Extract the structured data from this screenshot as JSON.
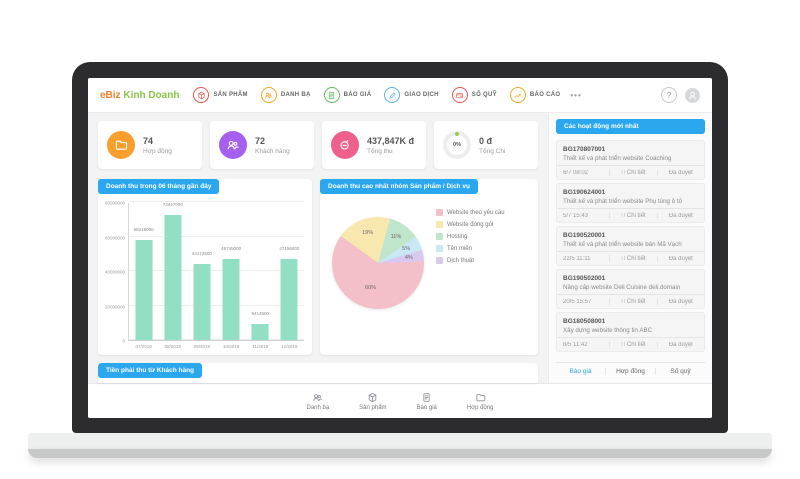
{
  "nav": {
    "logo_part1": "eBiz",
    "logo_part2": "Kinh Doanh",
    "items": [
      {
        "label": "SẢN PHẨM",
        "icon": "box-icon",
        "color": "#e8574b"
      },
      {
        "label": "DANH BẠ",
        "icon": "contacts-icon",
        "color": "#f5a623"
      },
      {
        "label": "BÁO GIÁ",
        "icon": "doc-icon",
        "color": "#5cb85c"
      },
      {
        "label": "GIAO DỊCH",
        "icon": "pencil-icon",
        "color": "#56b4e8"
      },
      {
        "label": "SỐ QUỸ",
        "icon": "wallet-icon",
        "color": "#e8574b"
      },
      {
        "label": "BÁO CÁO",
        "icon": "trend-icon",
        "color": "#f5a623"
      }
    ],
    "more_label": "•••",
    "help_label": "?"
  },
  "stats": [
    {
      "value": "74",
      "label": "Hợp đồng",
      "icon": "folder-icon",
      "color": "#f9a02c"
    },
    {
      "value": "72",
      "label": "Khách hàng",
      "icon": "contacts-icon",
      "color": "#a560f0"
    },
    {
      "value": "437,847K đ",
      "label": "Tổng thu",
      "icon": "money-icon",
      "color": "#f0608c"
    },
    {
      "value": "0 đ",
      "label": "Tổng Chi",
      "icon": "donut-gauge",
      "percent": "0%",
      "dot_color": "#9acc3f"
    }
  ],
  "chart_data": [
    {
      "type": "bar",
      "title": "Doanh thu trong 06 tháng gần đây",
      "categories": [
        "07/2019",
        "08/2019",
        "09/2019",
        "10/2019",
        "11/2019",
        "12/2019"
      ],
      "values": [
        58216000,
        72447000,
        44172500,
        46745000,
        9414500,
        47156000
      ],
      "value_labels": [
        "58216000",
        "72447000",
        "44172500",
        "46745000",
        "9414500",
        "47156000"
      ],
      "ylim": [
        0,
        80000000
      ],
      "yticks": [
        0,
        20000000,
        40000000,
        60000000,
        80000000
      ],
      "ytick_labels": [
        "0",
        "20000000",
        "40000000",
        "60000000",
        "80000000"
      ],
      "bar_color": "#93dfc4",
      "grid": true,
      "legend_position": "none"
    },
    {
      "type": "pie",
      "title": "Doanh thu cao nhất nhóm Sản phẩm / Dịch vụ",
      "labels": [
        "Website theo yêu cầu",
        "Website đóng gói",
        "Hosting",
        "Tên miền",
        "Dịch thuật"
      ],
      "values": [
        60,
        19,
        11,
        5,
        4
      ],
      "unit": "%",
      "colors": [
        "#f3bfc9",
        "#f8e7ae",
        "#bfe5cb",
        "#c8e9f4",
        "#d9c9ee"
      ],
      "legend_position": "right",
      "start_angle": -54,
      "draw_order": [
        1,
        2,
        3,
        4,
        0
      ]
    }
  ],
  "bottom_chip": "Tiền phải thu từ Khách hàng",
  "bottom_tabs": [
    {
      "label": "Danh bạ",
      "icon": "contacts-icon"
    },
    {
      "label": "Sản phẩm",
      "icon": "box-icon"
    },
    {
      "label": "Báo giá",
      "icon": "doc-icon"
    },
    {
      "label": "Hợp đồng",
      "icon": "folder-icon"
    }
  ],
  "sidebar": {
    "title": "Các hoạt động mới nhất",
    "items": [
      {
        "code": "BG170807001",
        "desc": "Thiết kế và phát triển website Coaching",
        "time": "6/7 08:02",
        "detail": "Chi tiết",
        "status": "Đã duyệt"
      },
      {
        "code": "BG190624001",
        "desc": "Thiết kế và phát triển website Phụ tùng ô tô",
        "time": "5/7 15:43",
        "detail": "Chi tiết",
        "status": "Đã duyệt"
      },
      {
        "code": "BG190520001",
        "desc": "Thiết kế và phát triển website bán Mã Vạch",
        "time": "22/5 11:11",
        "detail": "Chi tiết",
        "status": "Đã duyệt"
      },
      {
        "code": "BG190502001",
        "desc": "Nâng cấp website Deli Cuisine deli.domain",
        "time": "20/5 15:57",
        "detail": "Chi tiết",
        "status": "Đã duyệt"
      },
      {
        "code": "BG180508001",
        "desc": "Xây dựng website thông tin ABC",
        "time": "8/5 11:42",
        "detail": "Chi tiết",
        "status": "Đã duyệt"
      }
    ],
    "tabs": [
      {
        "label": "Báo giá",
        "active": true
      },
      {
        "label": "Hợp đồng",
        "active": false
      },
      {
        "label": "Số quỹ",
        "active": false
      }
    ]
  },
  "accent_color": "#2aa7ef"
}
